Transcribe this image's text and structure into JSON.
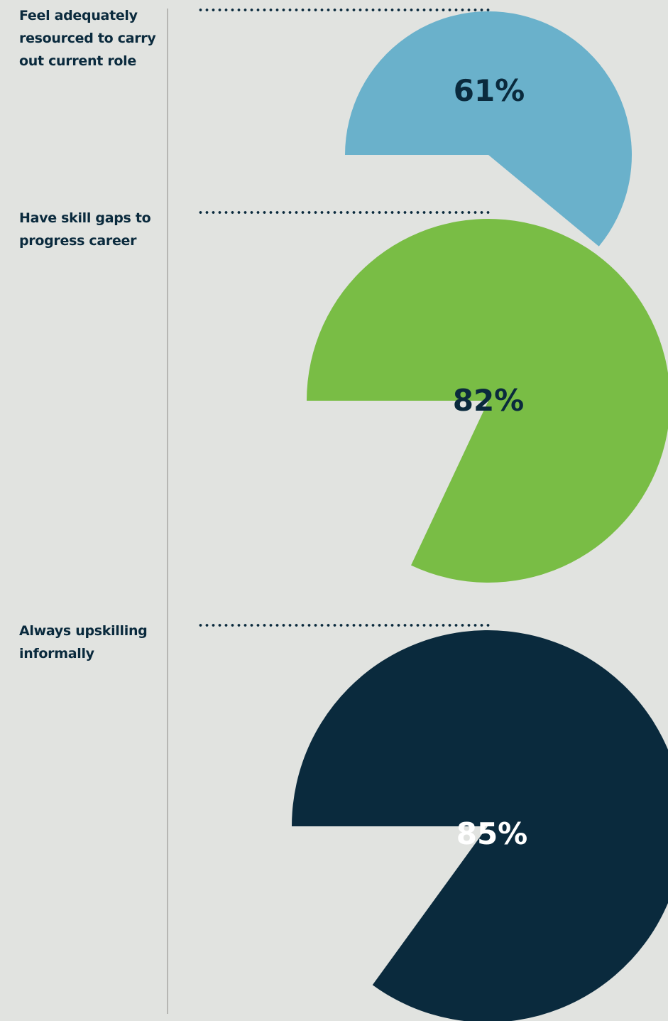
{
  "colors": {
    "background": "#e1e3e0",
    "dark_navy": "#0a2a3d",
    "light_blue": "#6ab1cb",
    "green": "#79bd45"
  },
  "items": [
    {
      "label": "Feel adequately resourced to carry out current role",
      "value_text": "61%"
    },
    {
      "label": "Have skill gaps to progress career",
      "value_text": "82%"
    },
    {
      "label": "Always upskilling informally",
      "value_text": "85%"
    }
  ],
  "chart_data": [
    {
      "type": "pie",
      "title": "Feel adequately resourced to carry out current role",
      "values": [
        61
      ],
      "value_labels": [
        "61%"
      ],
      "color": "#6ab1cb",
      "label_color": "#0a2a3d"
    },
    {
      "type": "pie",
      "title": "Have skill gaps to progress career",
      "values": [
        82
      ],
      "value_labels": [
        "82%"
      ],
      "color": "#79bd45",
      "label_color": "#0a2a3d"
    },
    {
      "type": "pie",
      "title": "Always upskilling informally",
      "values": [
        85
      ],
      "value_labels": [
        "85%"
      ],
      "color": "#0a2a3d",
      "label_color": "#ffffff"
    }
  ]
}
